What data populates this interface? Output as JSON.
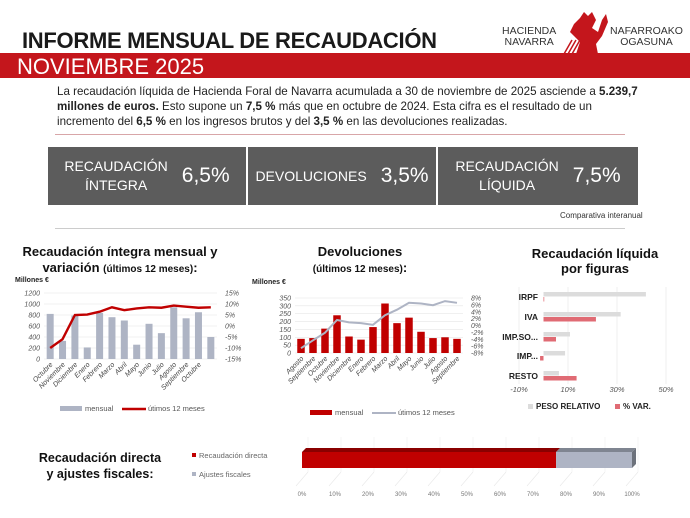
{
  "header": {
    "title": "INFORME MENSUAL DE RECAUDACIÓN",
    "subtitle": "NOVIEMBRE 2025",
    "logo_text": [
      "HACIENDA",
      "NAVARRA",
      "NAFARROAKO",
      "OGASUNA"
    ]
  },
  "intro": {
    "p1": "La recaudación líquida de Hacienda Foral de Navarra acumulada a 30 de noviembre de 2025 asciende a ",
    "b1": "5.239,7 millones de euros.",
    "p2": " Esto supone un ",
    "b2": "7,5 %",
    "p3": " más que en octubre de 2024. Esta cifra es el resultado de un incremento del ",
    "b3": "6,5 %",
    "p4": " en los ingresos brutos y del ",
    "b4": "3,5 %",
    "p5": " en las devoluciones realizadas."
  },
  "stats": [
    {
      "label1": "RECAUDACIÓN",
      "label2": "ÍNTEGRA",
      "value": "6,5%"
    },
    {
      "label1": "DEVOLUCIONES",
      "label2": "",
      "value": "3,5%"
    },
    {
      "label1": "RECAUDACIÓN",
      "label2": "LÍQUIDA",
      "value": "7,5%"
    }
  ],
  "stats_note": "Comparativa interanual",
  "colors": {
    "red": "#c00000",
    "grey_bar": "#aeb4c4",
    "dark_box": "#5c5c5c",
    "peso": "#dcdcdc",
    "var": "#e06b74"
  },
  "chart_data": [
    {
      "type": "bar",
      "title1": "Recaudación íntegra mensual y",
      "title2": "variación",
      "title3": "(últimos 12 meses)",
      "title4": ":",
      "ylabel": "Millones €",
      "categories": [
        "Octubre",
        "Noviembre",
        "Diciembre",
        "Enero",
        "Febrero",
        "Marzo",
        "Abril",
        "Mayo",
        "Junio",
        "Julio",
        "Agosto",
        "Septiembre",
        "Octubre",
        ""
      ],
      "ylim": [
        0,
        1200
      ],
      "yticks": [
        "1200",
        "1000",
        "800",
        "600",
        "400",
        "200",
        "0"
      ],
      "y2lim": [
        -15,
        15
      ],
      "y2ticks": [
        "15%",
        "10%",
        "5%",
        "0%",
        "-5%",
        "-10%",
        "-15%"
      ],
      "series": [
        {
          "name": "mensual",
          "kind": "bar",
          "axis": "left",
          "values": [
            820,
            330,
            790,
            210,
            840,
            760,
            700,
            260,
            640,
            470,
            940,
            740,
            850,
            400
          ]
        },
        {
          "name": "útimos 12 meses",
          "kind": "line",
          "axis": "right",
          "values": [
            -10,
            -6,
            5,
            5.2,
            6.5,
            8.5,
            7.2,
            8,
            8.5,
            8.3,
            9.3,
            8.8,
            8.3,
            8.5
          ]
        }
      ]
    },
    {
      "type": "bar",
      "title1": "Devoluciones",
      "title2": "(últimos 12 meses)",
      "title3": ":",
      "ylabel": "Millones €",
      "categories": [
        "Agosto",
        "Septiembre",
        "Octubre",
        "Noviembre",
        "Diciembre",
        "Enero",
        "Febrero",
        "Marzo",
        "Abril",
        "Mayo",
        "Junio",
        "Julio",
        "Agosto",
        "Septiembre"
      ],
      "ylim": [
        0,
        350
      ],
      "yticks": [
        "350",
        "300",
        "250",
        "200",
        "150",
        "100",
        "50",
        "0"
      ],
      "y2lim": [
        -8,
        8
      ],
      "y2ticks": [
        "8%",
        "6%",
        "4%",
        "2%",
        "0%",
        "-2%",
        "-4%",
        "-6%",
        "-8%"
      ],
      "series": [
        {
          "name": "mensual",
          "kind": "bar",
          "axis": "left",
          "values": [
            90,
            95,
            155,
            240,
            105,
            85,
            165,
            315,
            190,
            225,
            135,
            95,
            100,
            90
          ]
        },
        {
          "name": "útimos 12 meses",
          "kind": "line",
          "axis": "right",
          "values": [
            -6.6,
            -4.3,
            -2.1,
            1.6,
            0.9,
            0.7,
            0.2,
            3.0,
            4.6,
            6.6,
            6.4,
            5.9,
            7.1,
            6.6
          ]
        }
      ]
    },
    {
      "type": "bar",
      "orientation": "horizontal",
      "title1": "Recaudación líquida",
      "title2": "por figuras",
      "categories": [
        "IRPF",
        "IVA",
        "IMP.SO...",
        "IMP...",
        "RESTO"
      ],
      "xlim": [
        -10,
        50
      ],
      "xticks": [
        "-10%",
        "10%",
        "30%",
        "50%"
      ],
      "grid": true,
      "legend": "bottom",
      "series": [
        {
          "name": "PESO RELATIVO",
          "values": [
            41.8,
            31.5,
            10.8,
            8.8,
            6.3
          ]
        },
        {
          "name": "% VAR.",
          "values": [
            0.3,
            21.4,
            5.1,
            -1.4,
            13.5
          ]
        }
      ]
    },
    {
      "type": "bar",
      "orientation": "horizontal",
      "stacked": true,
      "title1": "Recaudación directa",
      "title2": "y ajustes fiscales:",
      "xlim": [
        0,
        100
      ],
      "xticks": [
        "0%",
        "10%",
        "20%",
        "30%",
        "40%",
        "50%",
        "60%",
        "70%",
        "80%",
        "90%",
        "100%"
      ],
      "legend": "left",
      "series": [
        {
          "name": "Recaudación directa",
          "values": [
            77
          ]
        },
        {
          "name": "Ajustes fiscales",
          "values": [
            23
          ]
        }
      ]
    }
  ]
}
